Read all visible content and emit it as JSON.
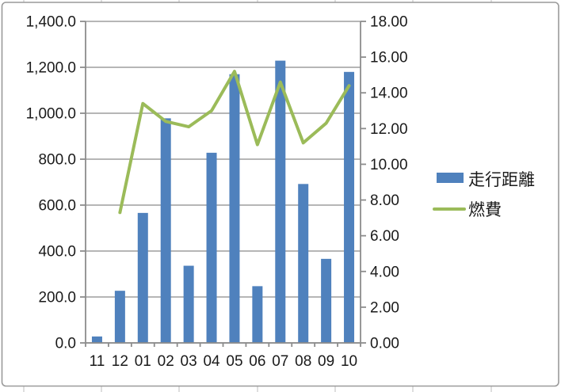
{
  "chart_data": {
    "type": "combo-bar-line",
    "categories": [
      "11",
      "12",
      "01",
      "02",
      "03",
      "04",
      "05",
      "06",
      "07",
      "08",
      "09",
      "10"
    ],
    "series": [
      {
        "name": "走行距離",
        "type": "bar",
        "axis": "left",
        "color": "#4f81bd",
        "values": [
          28,
          227,
          566,
          978,
          336,
          828,
          1170,
          247,
          1229,
          692,
          366,
          1180
        ]
      },
      {
        "name": "燃費",
        "type": "line",
        "axis": "right",
        "color": "#9bbb59",
        "values": [
          null,
          7.3,
          13.4,
          12.4,
          12.1,
          13.0,
          15.2,
          11.1,
          14.6,
          11.2,
          12.3,
          14.4
        ]
      }
    ],
    "left_axis": {
      "min": 0,
      "max": 1400,
      "step": 200,
      "tick_labels": [
        "0.0",
        "200.0",
        "400.0",
        "600.0",
        "800.0",
        "1,000.0",
        "1,200.0",
        "1,400.0"
      ]
    },
    "right_axis": {
      "min": 0,
      "max": 18,
      "step": 2,
      "tick_labels": [
        "0.00",
        "2.00",
        "4.00",
        "6.00",
        "8.00",
        "10.00",
        "12.00",
        "14.00",
        "16.00",
        "18.00"
      ]
    },
    "legend_position": "right",
    "grid": true,
    "colors": {
      "gridline": "#9d9d9d",
      "axis": "#8c8c8c",
      "text": "#1a1a1a",
      "frame": "#9a9a9a",
      "sheet_tick": "#cfcfcf"
    }
  }
}
